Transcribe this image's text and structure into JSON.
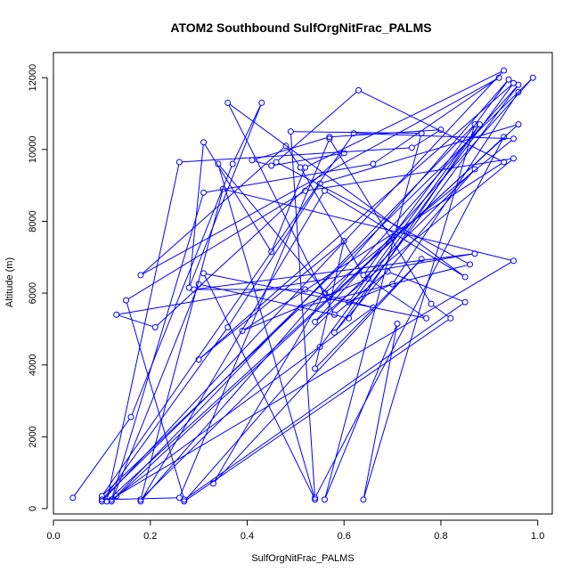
{
  "chart_data": {
    "type": "scatter",
    "title": "ATOM2 Southbound SulfOrgNitFrac_PALMS",
    "xlabel": "SulfOrgNitFrac_PALMS",
    "ylabel": "Altitude (m)",
    "xlim": [
      0.0,
      1.03
    ],
    "ylim": [
      -150,
      12700
    ],
    "xticks": [
      0.0,
      0.2,
      0.4,
      0.6,
      0.8,
      1.0
    ],
    "xtick_labels": [
      "0.0",
      "0.2",
      "0.4",
      "0.6",
      "0.8",
      "1.0"
    ],
    "yticks": [
      0,
      2000,
      4000,
      6000,
      8000,
      10000,
      12000
    ],
    "ytick_labels": [
      "0",
      "2000",
      "4000",
      "6000",
      "8000",
      "10000",
      "12000"
    ],
    "grid": false,
    "legend": "none",
    "series": [
      {
        "color": "#0000ff",
        "marker": "open-circle",
        "line": true,
        "x": [
          0.04,
          0.16,
          0.37,
          0.43,
          0.28,
          0.31,
          0.45,
          0.52,
          0.93,
          0.1,
          0.36,
          0.55,
          0.96,
          0.11,
          0.26,
          0.74,
          0.8,
          0.57,
          0.41,
          0.45,
          0.6,
          0.21,
          0.13,
          0.87,
          0.29,
          0.52,
          0.66,
          0.12,
          0.31,
          0.66,
          0.92,
          0.18,
          0.48,
          0.51,
          0.64,
          0.94,
          0.18,
          0.56,
          0.85,
          0.36,
          0.58,
          0.69,
          0.85,
          0.27,
          0.15,
          0.52,
          0.95,
          0.54,
          0.99,
          0.1,
          0.26,
          0.57,
          0.78,
          0.82,
          0.27,
          0.55,
          0.95,
          0.3,
          0.6,
          0.54,
          0.76,
          0.33,
          0.56,
          0.95,
          0.62,
          0.1,
          0.51,
          0.86,
          0.46,
          0.63,
          0.93,
          0.39,
          0.65,
          0.77,
          0.31,
          0.54,
          0.34,
          0.57,
          0.96,
          0.58,
          0.87,
          0.18,
          0.35,
          0.95,
          0.13,
          0.87,
          0.64,
          0.71,
          0.56,
          0.76,
          0.49,
          0.54,
          0.93,
          0.12,
          0.3,
          0.61,
          0.88,
          0.61,
          0.7,
          0.96
        ],
        "y": [
          300,
          2550,
          9600,
          11300,
          6150,
          10200,
          7150,
          9500,
          12200,
          200,
          5050,
          9050,
          10700,
          200,
          9650,
          10050,
          10550,
          10350,
          9700,
          9550,
          9900,
          5050,
          5400,
          7100,
          6100,
          6100,
          5600,
          250,
          8800,
          9600,
          12000,
          6500,
          10100,
          9500,
          6500,
          11950,
          200,
          8850,
          6450,
          11300,
          5400,
          6600,
          5750,
          250,
          5800,
          8850,
          9750,
          5200,
          12000,
          250,
          300,
          10300,
          5700,
          5300,
          200,
          4500,
          11850,
          4150,
          7450,
          3900,
          6950,
          700,
          6000,
          10300,
          10450,
          350,
          5600,
          6800,
          9650,
          11650,
          9650,
          4950,
          6400,
          5300,
          6550,
          250,
          9600,
          5900,
          11800,
          4900,
          9450,
          250,
          8900,
          6900,
          350,
          10700,
          250,
          5150,
          250,
          10450,
          10500,
          300,
          10350,
          200,
          6250,
          5300,
          10700,
          5750,
          6250,
          11600
        ]
      }
    ]
  }
}
